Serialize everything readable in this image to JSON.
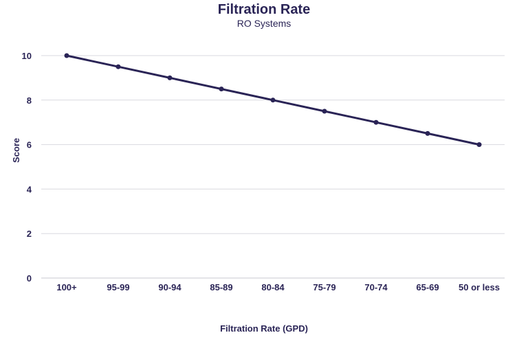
{
  "chart_data": {
    "type": "line",
    "title": "Filtration Rate",
    "subtitle": "RO Systems",
    "xlabel": "Filtration Rate (GPD)",
    "ylabel": "Score",
    "categories": [
      "100+",
      "95-99",
      "90-94",
      "85-89",
      "80-84",
      "75-79",
      "70-74",
      "65-69",
      "50 or less"
    ],
    "series": [
      {
        "values": [
          10,
          9.5,
          9,
          8.5,
          8,
          7.5,
          7,
          6.5,
          6
        ],
        "color": "#2a2456"
      }
    ],
    "ylim": [
      0,
      10
    ],
    "yticks": [
      0,
      2,
      4,
      6,
      8,
      10
    ],
    "grid": true,
    "legend": "none"
  }
}
